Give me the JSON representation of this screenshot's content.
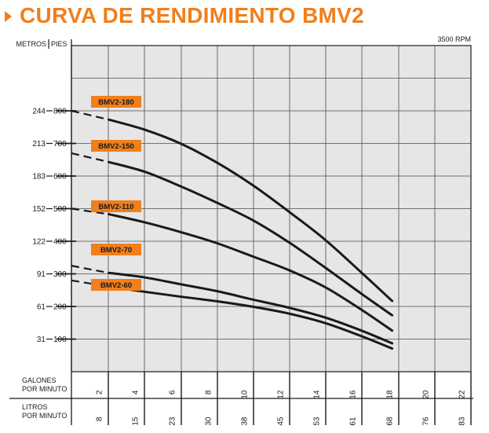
{
  "title": "CURVA DE RENDIMIENTO BMV2",
  "colors": {
    "accent": "#f07f1c",
    "curve": "#1a1a1a",
    "grid": "#4d4d4d",
    "plot_bg": "#e6e6e6"
  },
  "chart_data": {
    "type": "line",
    "title": "CURVA DE RENDIMIENTO BMV2",
    "annotation": "3500 RPM",
    "xlabel": "GALONES POR MINUTO",
    "xlabel_secondary": "LITROS POR MINUTO",
    "ylabel": "PIES",
    "ylabel_secondary": "METROS",
    "xlim": [
      0,
      22
    ],
    "ylim": [
      0,
      1000
    ],
    "x_ticks": [
      "2",
      "4",
      "6",
      "8",
      "10",
      "12",
      "14",
      "16",
      "18",
      "20",
      "22"
    ],
    "x_ticks_secondary": [
      "8",
      "15",
      "23",
      "30",
      "38",
      "45",
      "53",
      "61",
      "68",
      "76",
      "83"
    ],
    "y_ticks": [
      "100",
      "200",
      "300",
      "400",
      "500",
      "600",
      "700",
      "800"
    ],
    "y_ticks_secondary": [
      "31",
      "61",
      "91",
      "122",
      "152",
      "183",
      "213",
      "244"
    ],
    "grid": true,
    "series": [
      {
        "name": "BMV2-180",
        "shutoff_head": 800,
        "dashed_to_x": 4,
        "x": [
          4,
          6,
          8,
          10,
          12,
          14,
          16,
          18,
          19.7
        ],
        "y": [
          773,
          742,
          699,
          641,
          571,
          490,
          404,
          304,
          217
        ]
      },
      {
        "name": "BMV2-150",
        "shutoff_head": 670,
        "dashed_to_x": 4,
        "x": [
          4,
          6,
          8,
          10,
          12,
          14,
          16,
          18,
          19.7
        ],
        "y": [
          643,
          613,
          568,
          518,
          464,
          396,
          319,
          239,
          173
        ]
      },
      {
        "name": "BMV2-110",
        "shutoff_head": 500,
        "dashed_to_x": 4,
        "x": [
          4,
          6,
          8,
          10,
          12,
          14,
          16,
          18,
          19.7
        ],
        "y": [
          483,
          458,
          428,
          394,
          353,
          311,
          259,
          190,
          126
        ]
      },
      {
        "name": "BMV2-70",
        "shutoff_head": 325,
        "dashed_to_x": 4,
        "x": [
          4,
          6,
          8,
          10,
          12,
          14,
          16,
          18,
          19.7
        ],
        "y": [
          303,
          289,
          268,
          247,
          221,
          196,
          166,
          126,
          87
        ]
      },
      {
        "name": "BMV2-60",
        "shutoff_head": 280,
        "dashed_to_x": 4,
        "x": [
          4,
          6,
          8,
          10,
          12,
          14,
          16,
          18,
          19.7
        ],
        "y": [
          261,
          245,
          230,
          216,
          199,
          178,
          149,
          109,
          71
        ]
      }
    ]
  }
}
